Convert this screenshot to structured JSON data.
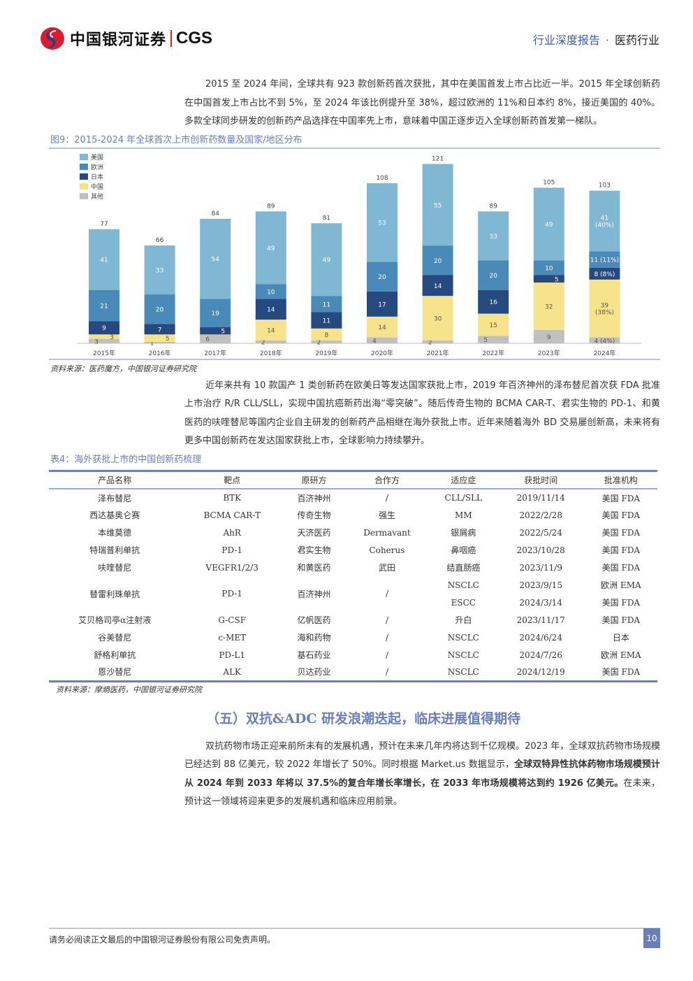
{
  "header": {
    "logo_cn": "中国银河证券",
    "logo_en": "CGS",
    "report_type": "行业深度报告",
    "separator": "·",
    "industry": "医药行业"
  },
  "para1": "2015 至 2024 年间，全球共有 923 款创新药首次获批，其中在美国首发上市占比近一半。2015 年全球创新药在中国首发上市占比不到 5%，至 2024 年该比例提升至 38%，超过欧洲的 11%和日本约 8%，接近美国的 40%。多款全球同步研发的创新药产品选择在中国率先上市，意味着中国正逐步迈入全球创新药首发第一梯队。",
  "figure": {
    "caption": "图9：2015-2024 年全球首次上市创新药数量及国家/地区分布",
    "source": "资料来源：医药魔方，中国银河证券研究院"
  },
  "chart_data": {
    "type": "bar",
    "stacked": true,
    "title": "2015-2024 年全球首次上市创新药数量及国家/地区分布",
    "categories": [
      "2015年",
      "2016年",
      "2017年",
      "2018年",
      "2019年",
      "2020年",
      "2021年",
      "2022年",
      "2023年",
      "2024年"
    ],
    "totals": [
      77,
      66,
      84,
      89,
      81,
      108,
      121,
      89,
      105,
      103
    ],
    "series": [
      {
        "name": "其他",
        "color": "#c0c0c0",
        "values": [
          3,
          1,
          6,
          2,
          2,
          4,
          2,
          5,
          9,
          4
        ],
        "labels": [
          "3",
          "1",
          "6",
          "2",
          "2",
          "4",
          "2",
          "5",
          "9",
          "4\n(4%)"
        ]
      },
      {
        "name": "中国",
        "color": "#f7e38c",
        "values": [
          3,
          5,
          0,
          14,
          8,
          14,
          30,
          15,
          32,
          39
        ],
        "labels": [
          "3",
          "5",
          "",
          "14",
          "8",
          "14",
          "30",
          "15",
          "32",
          "39\n(38%)"
        ]
      },
      {
        "name": "日本",
        "color": "#264a80",
        "values": [
          9,
          7,
          5,
          14,
          11,
          17,
          14,
          16,
          5,
          8
        ],
        "labels": [
          "9",
          "7",
          "5",
          "14",
          "11",
          "17",
          "14",
          "16",
          "5",
          "8\n(8%)"
        ]
      },
      {
        "name": "欧洲",
        "color": "#4a8ab8",
        "values": [
          21,
          20,
          19,
          10,
          11,
          20,
          20,
          20,
          10,
          11
        ],
        "labels": [
          "21",
          "20",
          "19",
          "10",
          "11",
          "20",
          "20",
          "20",
          "10",
          "11\n(11%)"
        ]
      },
      {
        "name": "美国",
        "color": "#80b8d4",
        "values": [
          41,
          33,
          54,
          49,
          49,
          53,
          55,
          33,
          49,
          41
        ],
        "labels": [
          "41",
          "33",
          "54",
          "49",
          "49",
          "53",
          "55",
          "33",
          "49",
          "41\n(40%)"
        ]
      }
    ],
    "legend": [
      "美国",
      "欧洲",
      "日本",
      "中国",
      "其他"
    ],
    "legend_position": "top-left",
    "ylim": [
      0,
      125
    ],
    "grid": false
  },
  "para2": "近年来共有 10 款国产 1 类创新药在欧美日等发达国家获批上市，2019 年百济神州的泽布替尼首次获 FDA 批准上市治疗 R/R CLL/SLL，实现中国抗癌新药出海“零突破”。随后传奇生物的 BCMA CAR-T、君实生物的 PD-1、和黄医药的呋喹替尼等国内企业自主研发的创新药产品相继在海外获批上市。近年来随着海外 BD 交易屡创新高，未来将有更多中国创新药在发达国家获批上市，全球影响力持续攀升。",
  "table": {
    "caption": "表4：海外获批上市的中国创新药梳理",
    "headers": [
      "产品名称",
      "靶点",
      "原研方",
      "合作方",
      "适应症",
      "获批时间",
      "批准机构"
    ],
    "rows": [
      {
        "name": "泽布替尼",
        "target": "BTK",
        "origin": "百济神州",
        "partner": "/",
        "approvals": [
          [
            "CLL/SLL",
            "2019/11/14",
            "美国 FDA"
          ]
        ]
      },
      {
        "name": "西达基奥仑赛",
        "target": "BCMA CAR-T",
        "origin": "传奇生物",
        "partner": "强生",
        "approvals": [
          [
            "MM",
            "2022/2/28",
            "美国 FDA"
          ]
        ]
      },
      {
        "name": "本维莫德",
        "target": "AhR",
        "origin": "天济医药",
        "partner": "Dermavant",
        "approvals": [
          [
            "银屑病",
            "2022/5/24",
            "美国 FDA"
          ]
        ]
      },
      {
        "name": "特瑞普利单抗",
        "target": "PD-1",
        "origin": "君实生物",
        "partner": "Coherus",
        "approvals": [
          [
            "鼻咽癌",
            "2023/10/28",
            "美国 FDA"
          ]
        ]
      },
      {
        "name": "呋喹替尼",
        "target": "VEGFR1/2/3",
        "origin": "和黄医药",
        "partner": "武田",
        "approvals": [
          [
            "结直肠癌",
            "2023/11/9",
            "美国 FDA"
          ]
        ]
      },
      {
        "name": "替雷利珠单抗",
        "target": "PD-1",
        "origin": "百济神州",
        "partner": "/",
        "approvals": [
          [
            "NSCLC",
            "2023/9/15",
            "欧洲 EMA"
          ],
          [
            "ESCC",
            "2024/3/14",
            "美国 FDA"
          ]
        ]
      },
      {
        "name": "艾贝格司亭α注射液",
        "target": "G-CSF",
        "origin": "亿帆医药",
        "partner": "/",
        "approvals": [
          [
            "升白",
            "2023/11/17",
            "美国 FDA"
          ]
        ]
      },
      {
        "name": "谷美替尼",
        "target": "c-MET",
        "origin": "海和药物",
        "partner": "/",
        "approvals": [
          [
            "NSCLC",
            "2024/6/24",
            "日本"
          ]
        ]
      },
      {
        "name": "舒格利单抗",
        "target": "PD-L1",
        "origin": "基石药业",
        "partner": "/",
        "approvals": [
          [
            "NSCLC",
            "2024/7/26",
            "欧洲 EMA"
          ]
        ]
      },
      {
        "name": "恩沙替尼",
        "target": "ALK",
        "origin": "贝达药业",
        "partner": "/",
        "approvals": [
          [
            "NSCLC",
            "2024/12/19",
            "美国 FDA"
          ]
        ]
      }
    ],
    "source": "资料来源：摩熵医药，中国银河证券研究院"
  },
  "section": {
    "title": "（五）双抗&ADC 研发浪潮迭起，临床进展值得期待"
  },
  "para3": {
    "a": "双抗药物市场正迎来前所未有的发展机遇，预计在未来几年内将达到千亿规模。2023 年，全球双抗药物市场规模已经达到 88 亿美元，较 2022 年增长了 50%。同时根据 Market.us 数据显示，",
    "b": "全球双特异性抗体药物市场规模预计从 2024 年到 2033 年将以 37.5%的复合年增长率增长，在 2033 年市场规模将达到约 1926 亿美元。",
    "c": "在未来，预计这一领域将迎来更多的发展机遇和临床应用前景。"
  },
  "footer": {
    "disclaimer": "请务必阅读正文最后的中国银河证券股份有限公司免责声明。",
    "page": "10"
  }
}
